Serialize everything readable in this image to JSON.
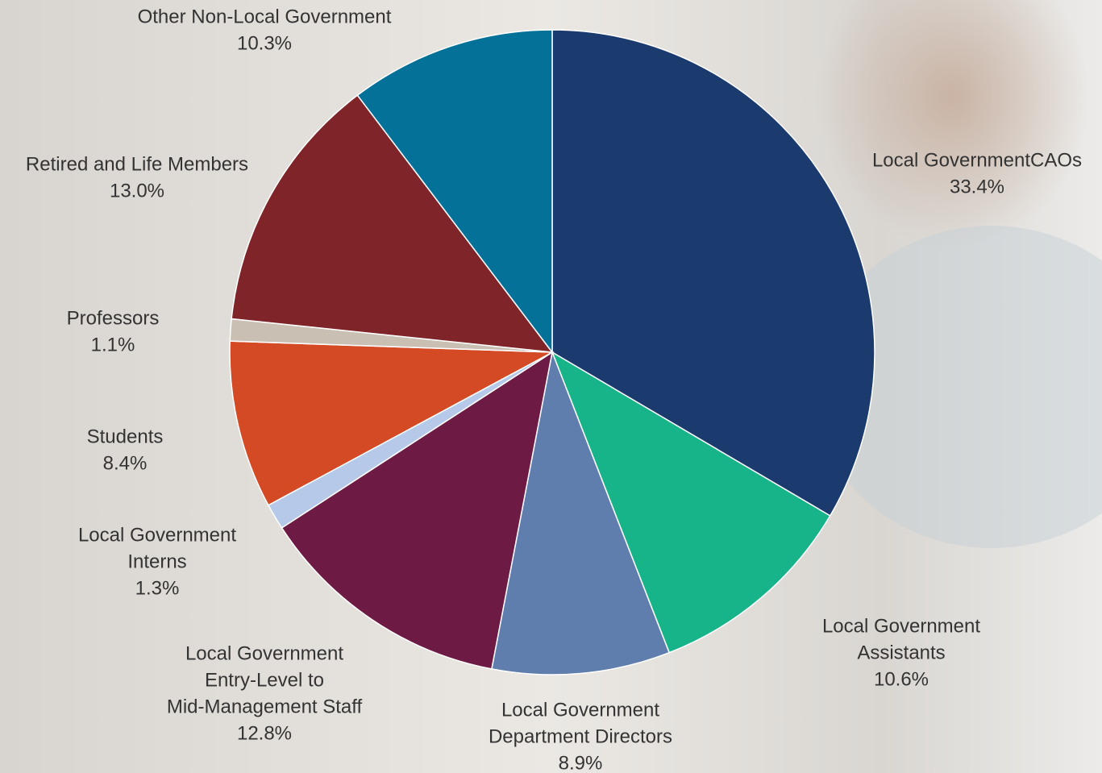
{
  "chart_data": {
    "type": "pie",
    "categories": [
      [
        "Local GovernmentCAOs"
      ],
      [
        "Local Government",
        "Assistants"
      ],
      [
        "Local Government",
        "Department Directors"
      ],
      [
        "Local Government",
        "Entry-Level to",
        "Mid-Management Staff"
      ],
      [
        "Local Government",
        "Interns"
      ],
      [
        "Students"
      ],
      [
        "Professors"
      ],
      [
        "Retired and Life Members"
      ],
      [
        "Other Non-Local Government"
      ]
    ],
    "values": [
      33.4,
      10.6,
      8.9,
      12.8,
      1.3,
      8.4,
      1.1,
      13.0,
      10.3
    ],
    "value_labels": [
      "33.4%",
      "10.6%",
      "8.9%",
      "12.8%",
      "1.3%",
      "8.4%",
      "1.1%",
      "13.0%",
      "10.3%"
    ],
    "colors": [
      "#1b3a6e",
      "#17b48a",
      "#5f7dad",
      "#6d1b44",
      "#b6c9e8",
      "#d44a25",
      "#c9bfb3",
      "#7f2428",
      "#047199"
    ]
  }
}
